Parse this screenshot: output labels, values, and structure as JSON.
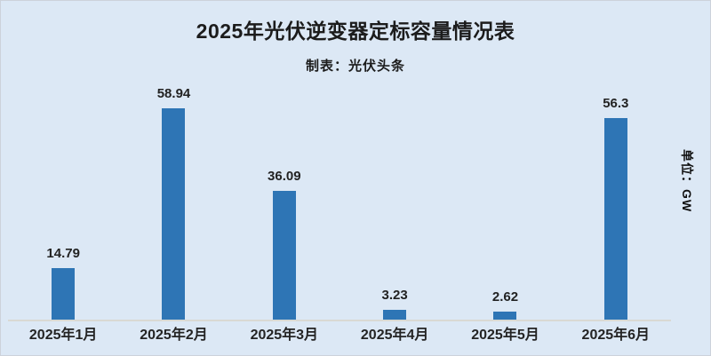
{
  "page": {
    "background_color": "#dce8f5",
    "bar_color": "#2e75b5",
    "axis_line_color": "#d9d9d3",
    "text_color": "#1c1c1c"
  },
  "chart_data": {
    "type": "bar",
    "title": "2025年光伏逆变器定标容量情况表",
    "subtitle": "制表：光伏头条",
    "unit_label": "单位：GW",
    "categories": [
      "2025年1月",
      "2025年2月",
      "2025年3月",
      "2025年4月",
      "2025年5月",
      "2025年6月"
    ],
    "values": [
      14.79,
      58.94,
      36.09,
      3.23,
      2.62,
      56.3
    ],
    "value_labels": [
      "14.79",
      "58.94",
      "36.09",
      "3.23",
      "2.62",
      "56.3"
    ],
    "ylim": [
      0,
      60
    ],
    "grid": false,
    "legend": false,
    "value_labels_shown": true,
    "bar_color": "#2e75b5"
  }
}
